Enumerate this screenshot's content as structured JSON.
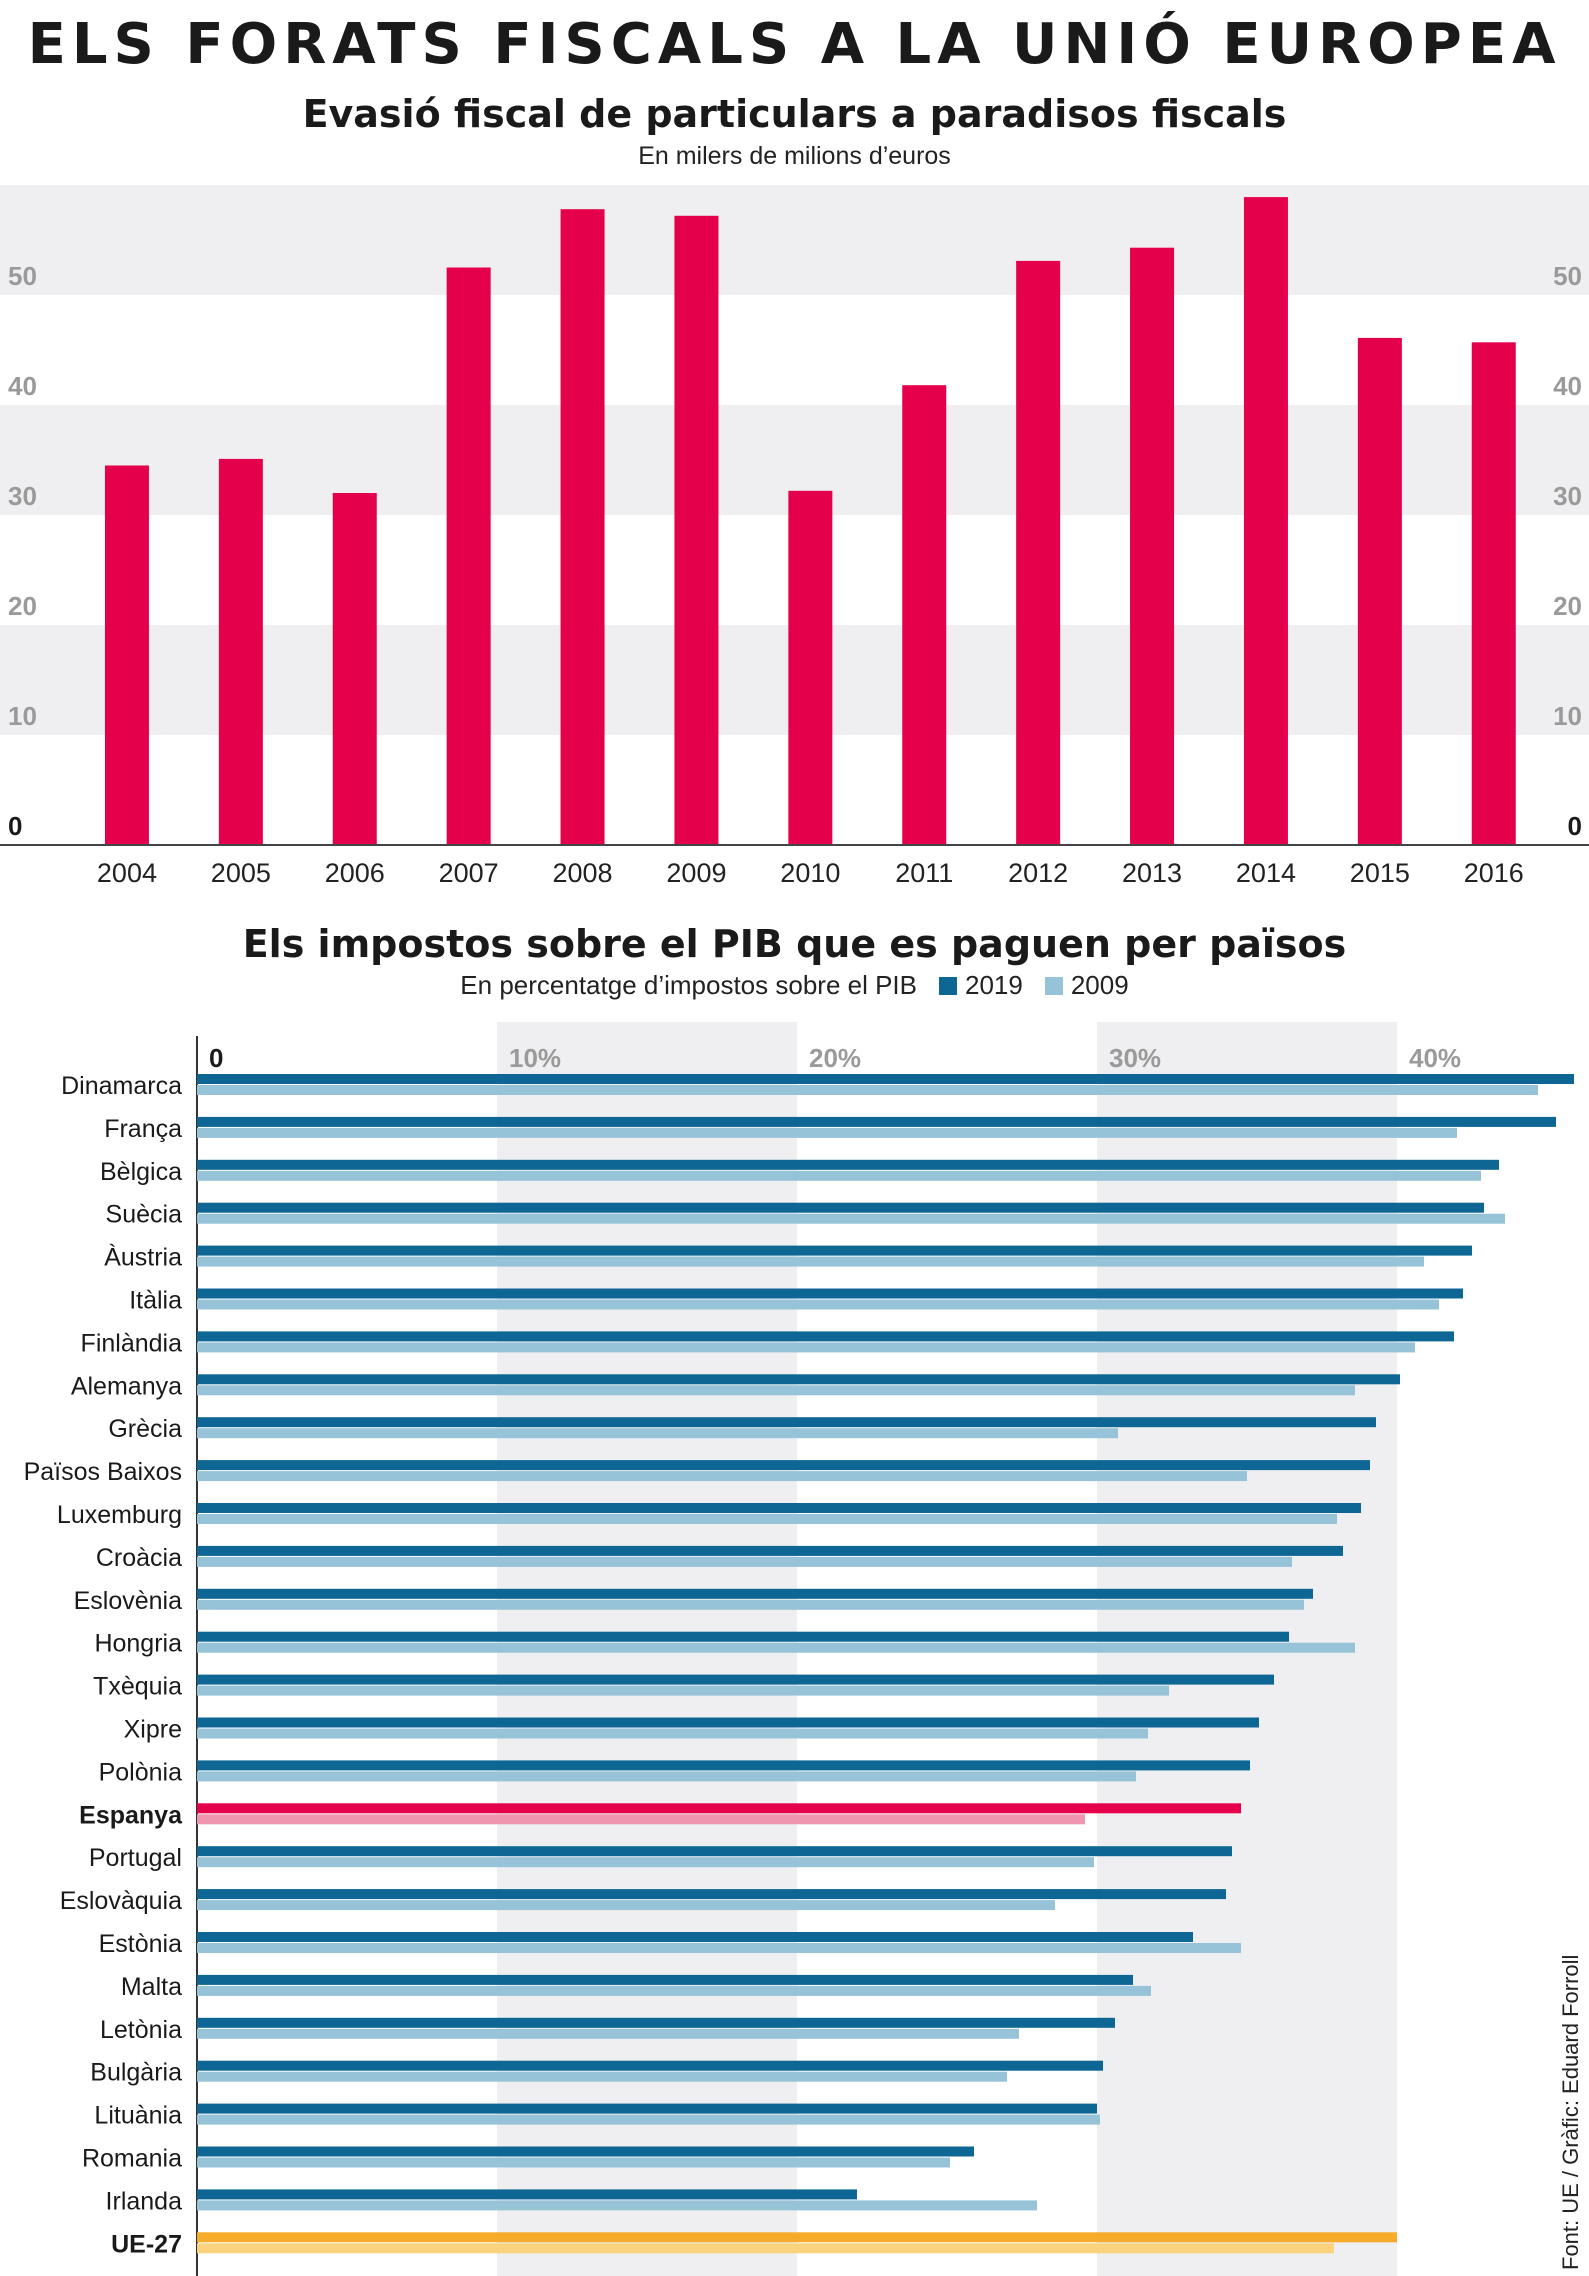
{
  "main_title": "ELS FORATS FISCALS A LA UNIÓ EUROPEA",
  "chart1": {
    "title": "Evasió fiscal de particulars a paradisos fiscals",
    "subtitle": "En milers de milions d’euros"
  },
  "chart2": {
    "title": "Els impostos sobre el PIB que es paguen per països",
    "subtitle": "En percentatge d’impostos sobre el PIB",
    "legend": [
      "2019",
      "2009"
    ]
  },
  "source": "Font: UE / Gràfic: Eduard Forroll",
  "colors": {
    "bar": "#e4004a",
    "series_2019": "#0d6694",
    "series_2009": "#97c3d8",
    "highlight_2019": "#e4004a",
    "highlight_2009": "#f095b0",
    "eu_2019": "#f7ab2a",
    "eu_2009": "#fbd27e",
    "band": "#efeff1",
    "tick_gray": "#9a9a9a"
  },
  "chart_data": [
    {
      "type": "bar",
      "title": "Evasió fiscal de particulars a paradisos fiscals",
      "subtitle": "En milers de milions d’euros",
      "categories": [
        "2004",
        "2005",
        "2006",
        "2007",
        "2008",
        "2009",
        "2010",
        "2011",
        "2012",
        "2013",
        "2014",
        "2015",
        "2016"
      ],
      "values": [
        34.5,
        35.1,
        32.0,
        52.5,
        57.8,
        57.2,
        32.2,
        41.8,
        53.1,
        54.3,
        58.9,
        46.1,
        45.7
      ],
      "yticks": [
        0,
        10,
        20,
        30,
        40,
        50
      ],
      "ylim": [
        0,
        60
      ],
      "axis_labels_both_sides": true,
      "grid": "alternating bands"
    },
    {
      "type": "bar",
      "orientation": "horizontal",
      "title": "Els impostos sobre el PIB que es paguen per països",
      "subtitle": "En percentatge d’impostos sobre el PIB",
      "categories": [
        "Dinamarca",
        "França",
        "Bèlgica",
        "Suècia",
        "Àustria",
        "Itàlia",
        "Finlàndia",
        "Alemanya",
        "Grècia",
        "Països Baixos",
        "Luxemburg",
        "Croàcia",
        "Eslovènia",
        "Hongria",
        "Txèquia",
        "Xipre",
        "Polònia",
        "Espanya",
        "Portugal",
        "Eslovàquia",
        "Estònia",
        "Malta",
        "Letònia",
        "Bulgària",
        "Lituània",
        "Romania",
        "Irlanda",
        "UE-27"
      ],
      "series": [
        {
          "name": "2019",
          "values": [
            45.9,
            45.3,
            43.4,
            42.9,
            42.5,
            42.2,
            41.9,
            40.1,
            39.3,
            39.1,
            38.8,
            38.2,
            37.2,
            36.4,
            35.9,
            35.4,
            35.1,
            34.8,
            34.5,
            34.3,
            33.2,
            31.2,
            30.6,
            30.2,
            30.0,
            25.9,
            22.0,
            40.0
          ]
        },
        {
          "name": "2009",
          "values": [
            44.7,
            42.0,
            42.8,
            43.6,
            40.9,
            41.4,
            40.6,
            38.6,
            30.7,
            35.0,
            38.0,
            36.5,
            36.9,
            38.6,
            32.4,
            31.7,
            31.3,
            29.6,
            29.9,
            28.6,
            34.8,
            31.8,
            27.4,
            27.0,
            30.1,
            25.1,
            28.0,
            37.9
          ]
        }
      ],
      "highlight": [
        "Espanya",
        "UE-27"
      ],
      "xticks": [
        "0",
        "10%",
        "20%",
        "30%",
        "40%"
      ],
      "xlim": [
        0,
        46
      ]
    }
  ]
}
